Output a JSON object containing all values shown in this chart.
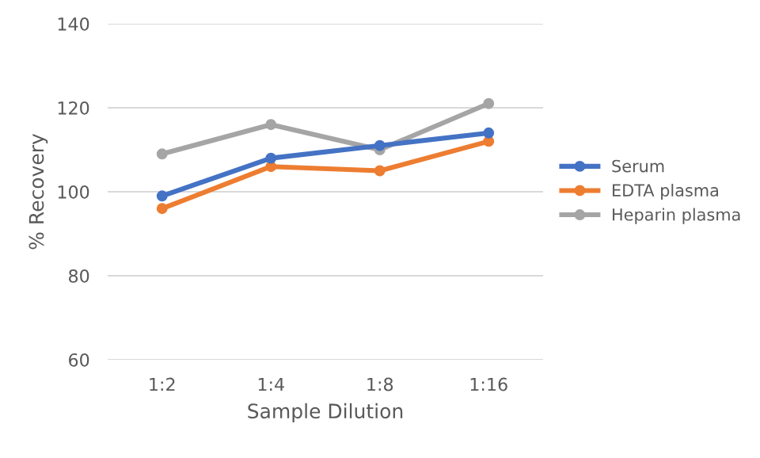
{
  "chart_data": {
    "type": "line",
    "xlabel": "Sample Dilution",
    "ylabel": "% Recovery",
    "categories": [
      "1:2",
      "1:4",
      "1:8",
      "1:16"
    ],
    "series": [
      {
        "name": "Serum",
        "color": "#4472c4",
        "values": [
          99,
          108,
          111,
          114
        ]
      },
      {
        "name": "EDTA plasma",
        "color": "#ed7d31",
        "values": [
          96,
          106,
          105,
          112
        ]
      },
      {
        "name": "Heparin plasma",
        "color": "#a5a5a5",
        "values": [
          109,
          116,
          110,
          121
        ]
      }
    ],
    "ylim": [
      60,
      140
    ],
    "yticks": [
      60,
      80,
      100,
      120,
      140
    ],
    "grid": "y",
    "legend": "right",
    "marker": "circle",
    "line_style": "solid"
  }
}
